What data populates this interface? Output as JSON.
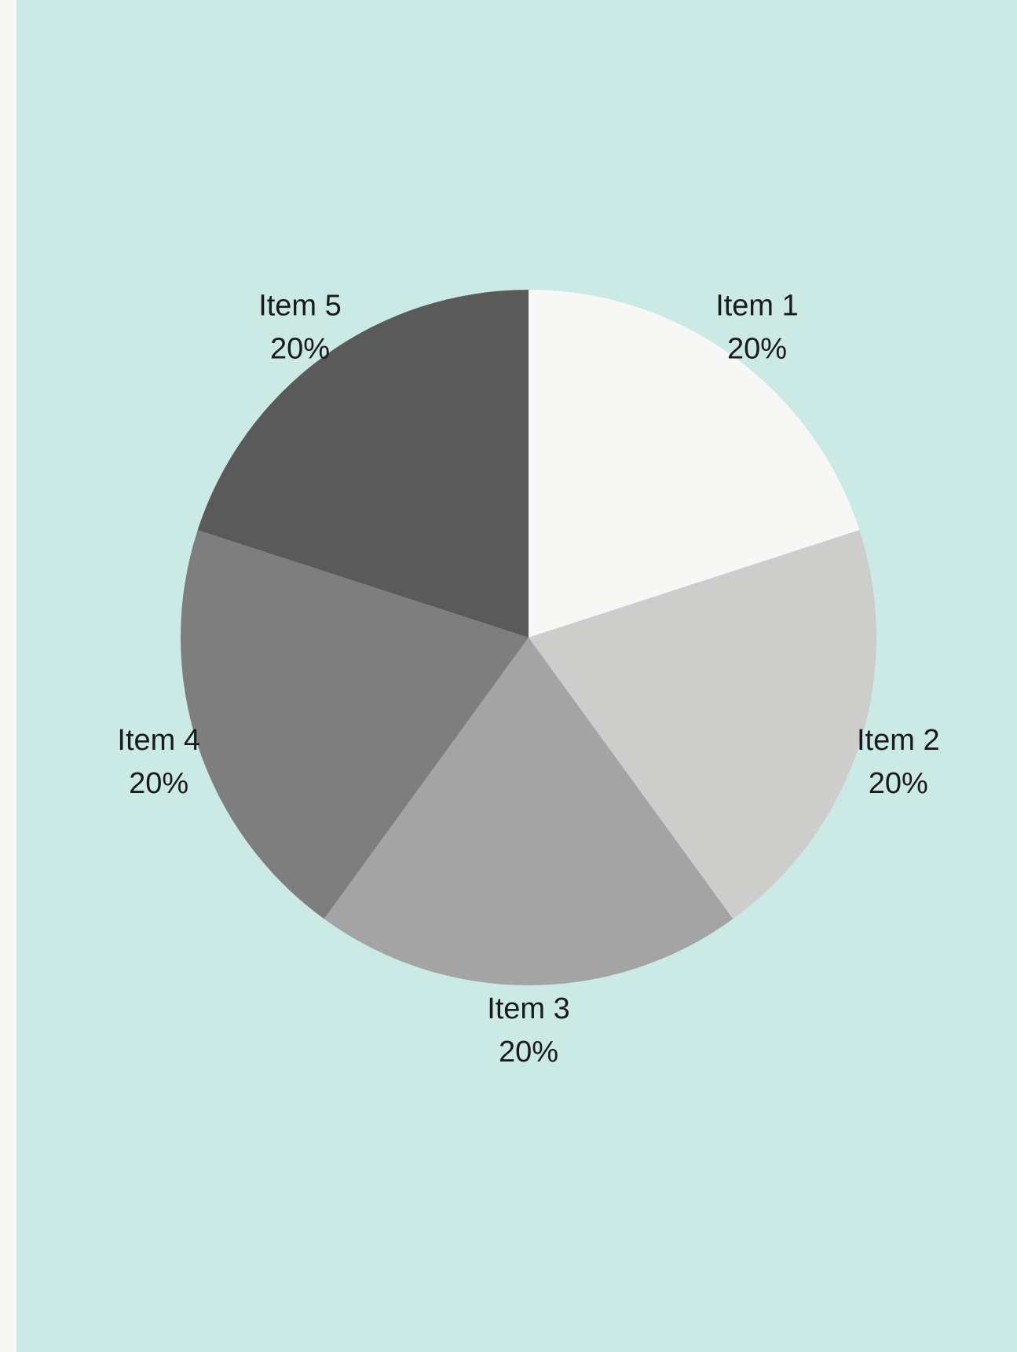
{
  "chart_data": {
    "type": "pie",
    "labels": [
      "Item 1",
      "Item 2",
      "Item 3",
      "Item 4",
      "Item 5"
    ],
    "values": [
      20,
      20,
      20,
      20,
      20
    ],
    "percent_labels": [
      "20%",
      "20%",
      "20%",
      "20%",
      "20%"
    ],
    "colors": [
      "#f7f7f6",
      "#cdcdcb",
      "#a3a4a3",
      "#7d7e7d",
      "#595a59"
    ],
    "background": "#cceae5",
    "start": "top",
    "direction": "clockwise"
  }
}
